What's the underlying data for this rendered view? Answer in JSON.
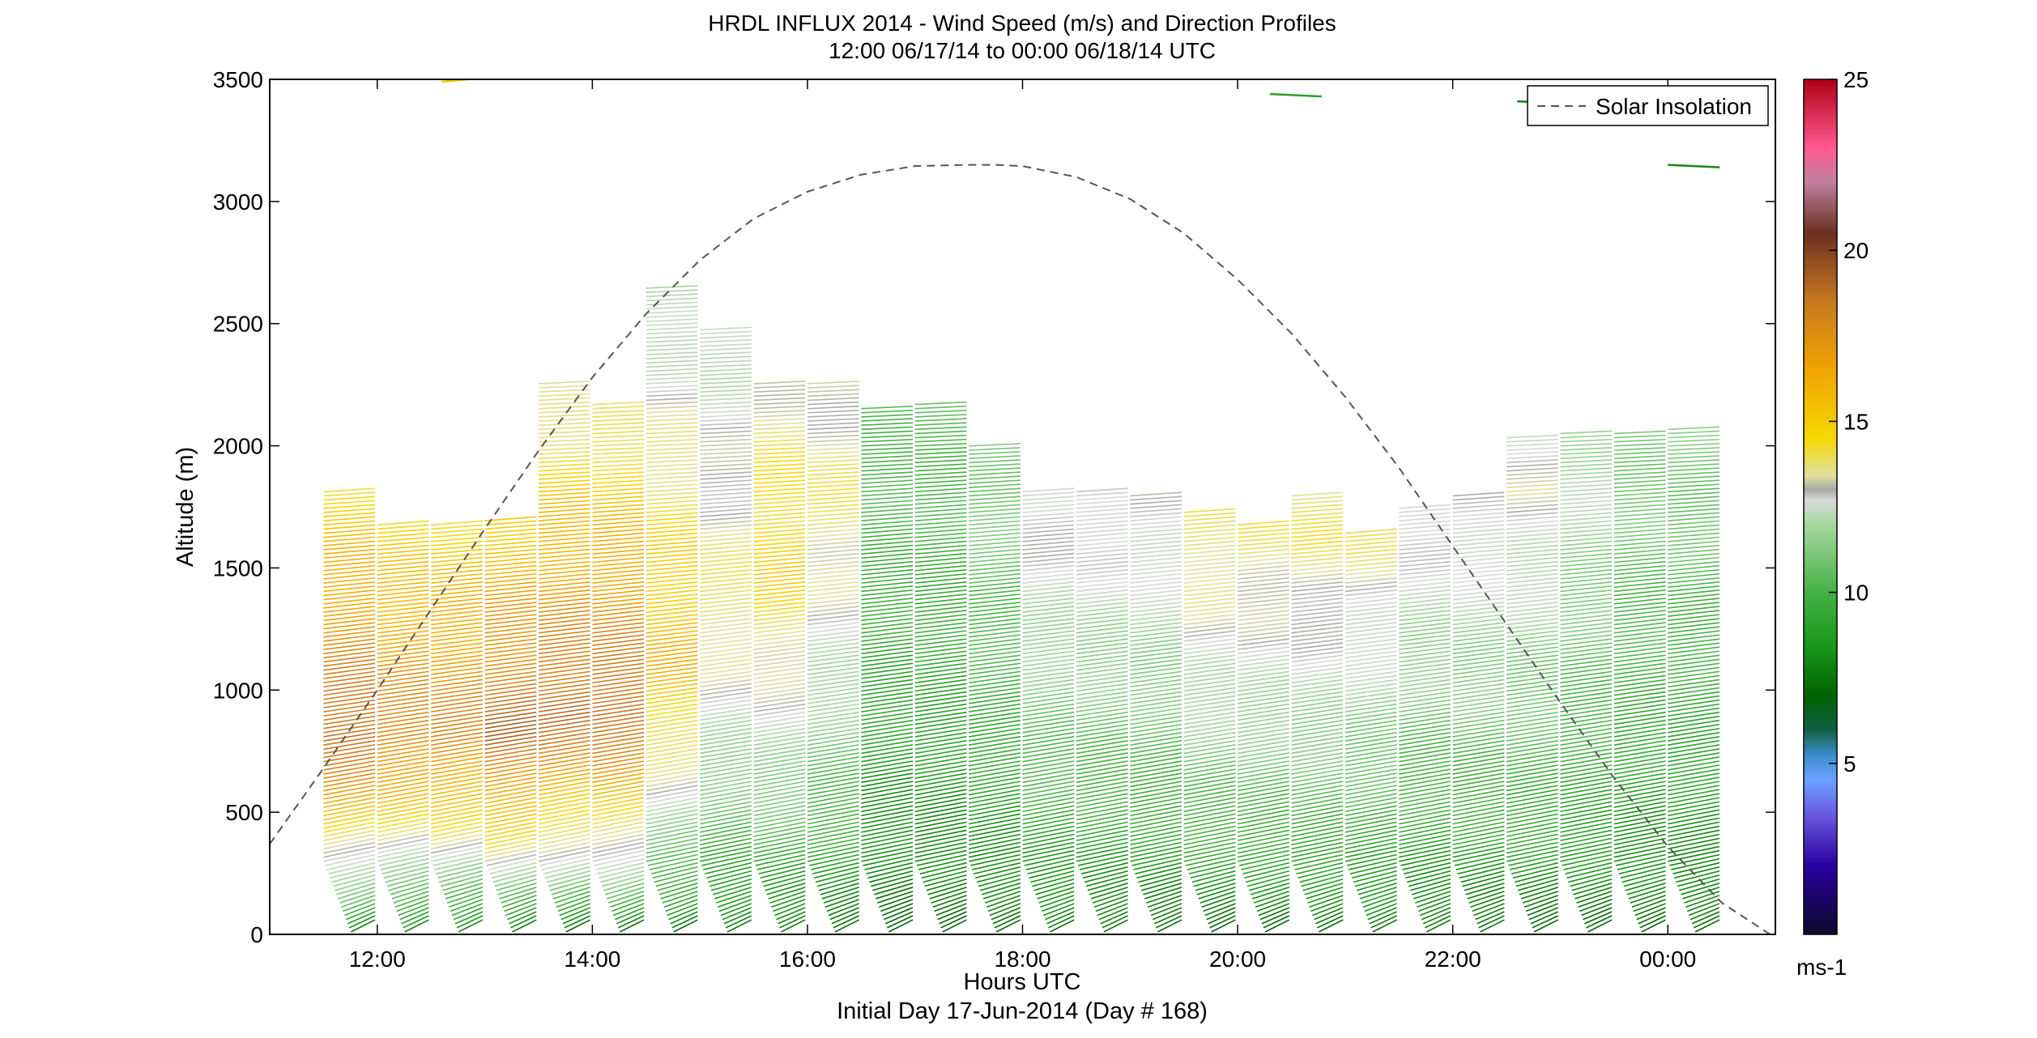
{
  "chart_data": {
    "type": "line",
    "title": "HRDL INFLUX 2014 - Wind Speed (m/s) and Direction Profiles",
    "subtitle": "12:00 06/17/14 to 00:00 06/18/14  UTC",
    "xlabel": "Hours UTC",
    "xlabel2": "Initial Day 17-Jun-2014 (Day # 168)",
    "ylabel": "Altitude (m)",
    "x_ticks": [
      "12:00",
      "14:00",
      "16:00",
      "18:00",
      "20:00",
      "22:00",
      "00:00"
    ],
    "x_tick_hours": [
      12,
      14,
      16,
      18,
      20,
      22,
      24
    ],
    "xlim": [
      11,
      25
    ],
    "ylim": [
      0,
      3500
    ],
    "y_ticks": [
      0,
      500,
      1000,
      1500,
      2000,
      2500,
      3000,
      3500
    ],
    "legend": {
      "position": "top-right",
      "entries": [
        "Solar Insolation"
      ]
    },
    "series": [
      {
        "name": "Solar Insolation",
        "style": "dashed",
        "x": [
          11.0,
          11.5,
          12.0,
          12.5,
          13.0,
          13.5,
          14.0,
          14.5,
          15.0,
          15.5,
          16.0,
          16.5,
          17.0,
          17.5,
          17.75,
          18.0,
          18.5,
          19.0,
          19.5,
          20.0,
          20.5,
          21.0,
          21.5,
          22.0,
          22.5,
          23.0,
          23.5,
          24.0,
          24.5,
          24.95
        ],
        "y": [
          370,
          680,
          1000,
          1330,
          1660,
          1980,
          2280,
          2540,
          2760,
          2930,
          3040,
          3110,
          3145,
          3150,
          3150,
          3145,
          3100,
          3010,
          2870,
          2680,
          2460,
          2200,
          1910,
          1590,
          1270,
          950,
          640,
          360,
          130,
          0
        ]
      }
    ],
    "wind_profiles": {
      "profile_start_hours": [
        11.5,
        12.0,
        12.5,
        13.0,
        13.5,
        14.0,
        14.5,
        15.0,
        15.5,
        16.0,
        16.5,
        17.0,
        17.5,
        18.0,
        18.5,
        19.0,
        19.5,
        20.0,
        20.5,
        21.0,
        21.5,
        22.0,
        22.5,
        23.0,
        23.5,
        24.0
      ],
      "top_altitudes_m": [
        1820,
        1680,
        1680,
        1700,
        2270,
        2170,
        2650,
        2490,
        2270,
        2270,
        2160,
        2170,
        2010,
        1820,
        1820,
        1800,
        1730,
        1690,
        1810,
        1650,
        1750,
        1800,
        2040,
        2050,
        2060,
        2070
      ],
      "peak_speed_ms": [
        19,
        18,
        18,
        19,
        19,
        19,
        16,
        14,
        15,
        14,
        10,
        10,
        11,
        13,
        13,
        13,
        14,
        14,
        14,
        14,
        13,
        13,
        13,
        12,
        11,
        11
      ],
      "peak_altitude_m": [
        800,
        800,
        800,
        800,
        900,
        900,
        1100,
        1300,
        1500,
        1700,
        1700,
        1700,
        1700,
        1700,
        1700,
        1700,
        1600,
        1600,
        1600,
        1700,
        1700,
        1700,
        1800,
        1800,
        1800,
        1900
      ],
      "isolated_segments": [
        {
          "hour": 12.6,
          "altitude_m": 3490,
          "speed_ms": 15
        },
        {
          "hour": 20.3,
          "altitude_m": 3440,
          "speed_ms": 9
        },
        {
          "hour": 22.6,
          "altitude_m": 3410,
          "speed_ms": 8
        },
        {
          "hour": 24.0,
          "altitude_m": 3150,
          "speed_ms": 8
        }
      ]
    },
    "colorbar": {
      "label": "ms-1",
      "ticks": [
        5,
        10,
        15,
        20,
        25
      ],
      "range": [
        0,
        25
      ],
      "colors": [
        {
          "v": 0,
          "c": "#0a0a2a"
        },
        {
          "v": 2,
          "c": "#2a00a0"
        },
        {
          "v": 3.5,
          "c": "#6a5adf"
        },
        {
          "v": 4.5,
          "c": "#6aa0ff"
        },
        {
          "v": 5.2,
          "c": "#3f8fd0"
        },
        {
          "v": 6,
          "c": "#0f5f3f"
        },
        {
          "v": 7,
          "c": "#006400"
        },
        {
          "v": 8.5,
          "c": "#1a9a1a"
        },
        {
          "v": 10,
          "c": "#46b046"
        },
        {
          "v": 12,
          "c": "#a8d8a0"
        },
        {
          "v": 12.7,
          "c": "#d8d8d8"
        },
        {
          "v": 13,
          "c": "#a8a8a8"
        },
        {
          "v": 13.4,
          "c": "#e0e0a0"
        },
        {
          "v": 14.5,
          "c": "#f5d800"
        },
        {
          "v": 16.5,
          "c": "#f0a400"
        },
        {
          "v": 18.5,
          "c": "#c87820"
        },
        {
          "v": 20.5,
          "c": "#6a3020"
        },
        {
          "v": 22,
          "c": "#c080a0"
        },
        {
          "v": 23,
          "c": "#ff5a90"
        },
        {
          "v": 25,
          "c": "#b00018"
        }
      ]
    }
  }
}
